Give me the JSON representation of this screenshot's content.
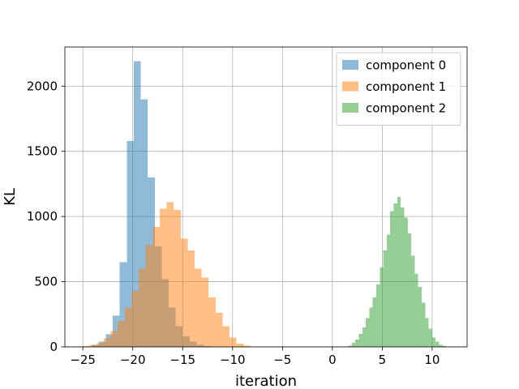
{
  "chart_data": {
    "type": "bar",
    "title": "",
    "xlabel": "iteration",
    "ylabel": "KL",
    "xlim": [
      -26.8,
      13.5
    ],
    "ylim": [
      0,
      2300
    ],
    "xticks": [
      -25,
      -20,
      -15,
      -10,
      -5,
      0,
      5,
      10
    ],
    "yticks": [
      0,
      500,
      1000,
      1500,
      2000
    ],
    "xtick_labels": [
      "−25",
      "−20",
      "−15",
      "−10",
      "−5",
      "0",
      "5",
      "10"
    ],
    "ytick_labels": [
      "0",
      "500",
      "1000",
      "1500",
      "2000"
    ],
    "grid": true,
    "legend_position": "top-right",
    "alpha": 0.5,
    "series": [
      {
        "name": "component 0",
        "color": "#1f77b4",
        "bin_edges": [
          -24.1,
          -23.4,
          -22.7,
          -22.0,
          -21.3,
          -20.6,
          -19.9,
          -19.2,
          -18.5,
          -17.8,
          -17.1,
          -16.4,
          -15.7,
          -15.0,
          -14.3,
          -13.6,
          -12.9,
          -12.2
        ],
        "counts": [
          15,
          40,
          95,
          240,
          650,
          1580,
          2190,
          1900,
          1300,
          770,
          520,
          300,
          160,
          80,
          40,
          15,
          5
        ]
      },
      {
        "name": "component 1",
        "color": "#ff7f0e",
        "bin_edges": [
          -25.0,
          -24.3,
          -23.6,
          -22.9,
          -22.2,
          -21.5,
          -20.8,
          -20.1,
          -19.4,
          -18.7,
          -18.0,
          -17.3,
          -16.6,
          -15.9,
          -15.2,
          -14.5,
          -13.8,
          -13.1,
          -12.4,
          -11.7,
          -11.0,
          -10.3,
          -9.6,
          -8.9,
          -8.2
        ],
        "counts": [
          5,
          15,
          30,
          65,
          120,
          200,
          300,
          430,
          600,
          780,
          920,
          1060,
          1110,
          1050,
          830,
          740,
          600,
          530,
          380,
          260,
          160,
          70,
          25,
          10
        ]
      },
      {
        "name": "component 2",
        "color": "#2ca02c",
        "bin_edges": [
          1.6,
          1.95,
          2.3,
          2.65,
          3.0,
          3.35,
          3.7,
          4.05,
          4.4,
          4.75,
          5.1,
          5.45,
          5.8,
          6.15,
          6.5,
          6.85,
          7.2,
          7.55,
          7.9,
          8.25,
          8.6,
          8.95,
          9.3,
          9.65,
          10.0,
          10.35,
          10.7,
          11.05,
          11.4
        ],
        "counts": [
          10,
          30,
          55,
          100,
          150,
          220,
          300,
          380,
          480,
          610,
          740,
          860,
          1040,
          1100,
          1150,
          1070,
          990,
          870,
          700,
          560,
          460,
          340,
          220,
          140,
          70,
          40,
          15,
          5
        ]
      }
    ]
  }
}
